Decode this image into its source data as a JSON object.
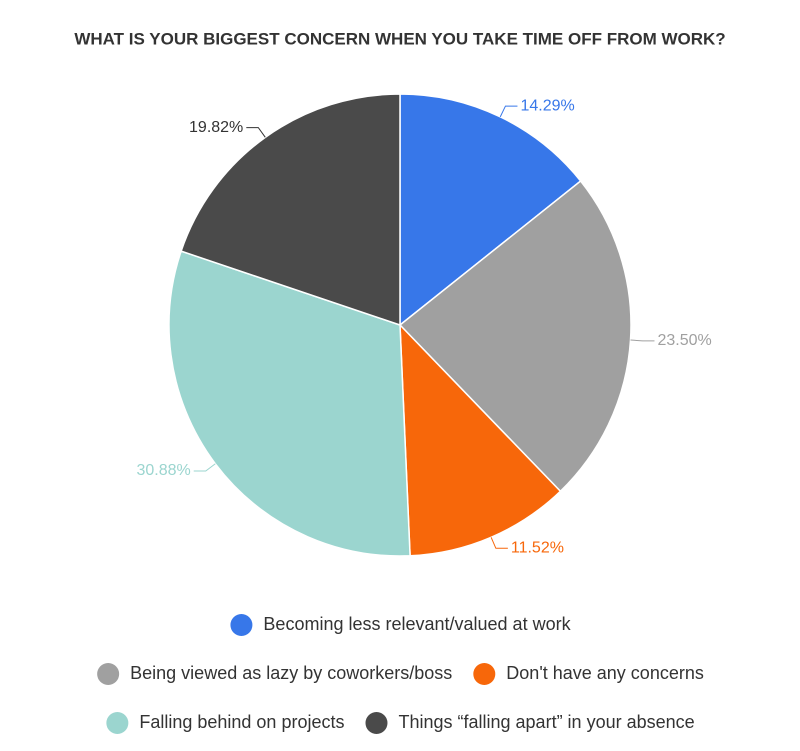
{
  "chart_data": {
    "type": "pie",
    "title": "WHAT IS YOUR BIGGEST CONCERN WHEN YOU TAKE TIME OFF FROM WORK?",
    "categories": [
      "Becoming less relevant/valued at work",
      "Being viewed as lazy by coworkers/boss",
      "Don't have any concerns",
      "Falling behind on projects",
      "Things “falling apart” in your absence"
    ],
    "values": [
      14.29,
      23.5,
      11.52,
      30.88,
      19.82
    ],
    "value_labels": [
      "14.29%",
      "23.50%",
      "11.52%",
      "30.88%",
      "19.82%"
    ],
    "colors": [
      "#3777e9",
      "#a0a0a0",
      "#f7670a",
      "#9bd5cf",
      "#4a4a4a"
    ]
  }
}
